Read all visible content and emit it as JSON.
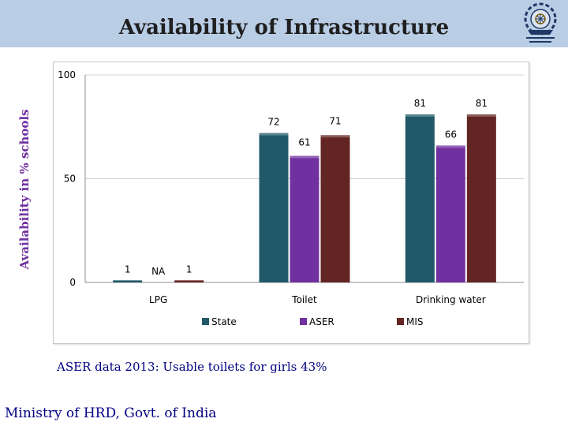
{
  "slide": {
    "title": "Availability of Infrastructure",
    "y_axis_title": "Availability in % schools",
    "note": "ASER data 2013: Usable toilets for girls 43%",
    "footer": "Ministry of HRD, Govt. of India"
  },
  "logo": {
    "icon": "emblem-logo-icon"
  },
  "chart_data": {
    "type": "bar",
    "title": "",
    "xlabel": "",
    "ylabel": "Availability in % schools",
    "ylim": [
      0,
      100
    ],
    "yticks": [
      0,
      50,
      100
    ],
    "categories": [
      "LPG",
      "Toilet",
      "Drinking water"
    ],
    "series": [
      {
        "name": "State",
        "values": [
          1,
          72,
          81
        ],
        "labels": [
          "1",
          "72",
          "81"
        ],
        "color": "#215968"
      },
      {
        "name": "ASER",
        "values": [
          0,
          61,
          66
        ],
        "labels": [
          "NA",
          "61",
          "66"
        ],
        "color": "#7030a0"
      },
      {
        "name": "MIS",
        "values": [
          1,
          71,
          81
        ],
        "labels": [
          "1",
          "71",
          "81"
        ],
        "color": "#632523"
      }
    ],
    "grid": true,
    "legend": "bottom"
  }
}
